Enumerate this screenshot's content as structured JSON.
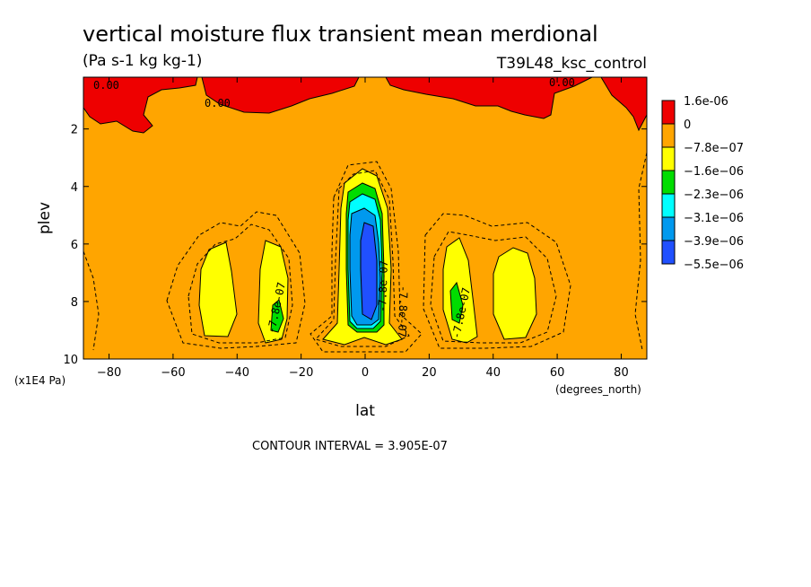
{
  "chart_data": {
    "type": "heatmap",
    "title": "vertical moisture flux transient mean merdional",
    "units_label": "(Pa s-1 kg kg-1)",
    "run_label": "T39L48_ksc_control",
    "xlabel": "lat",
    "x_units": "(degrees_north)",
    "ylabel": "plev",
    "y_units": "(x1E4 Pa)",
    "xlim": [
      -88,
      88
    ],
    "ylim": [
      0.2,
      10
    ],
    "y_inverted": true,
    "x_ticks": [
      "-80",
      "-60",
      "-40",
      "-20",
      "0",
      "20",
      "40",
      "60",
      "80"
    ],
    "y_ticks": [
      "2",
      "4",
      "6",
      "8",
      "10"
    ],
    "contour_interval_text": "CONTOUR INTERVAL = 3.905E-07",
    "contour_labels": [
      "0.00",
      "0.00",
      "0.00",
      "-7.8e-07",
      "-7.8e-07",
      "-7.8e-07",
      "-7.8e-07"
    ],
    "legend": {
      "entries": [
        {
          "label": "1.6e-06",
          "color": "#ee0000"
        },
        {
          "label": "0",
          "color": "#ffa500"
        },
        {
          "label": "−7.8e−07",
          "color": "#ffff00"
        },
        {
          "label": "−1.6e−06",
          "color": "#00dd00"
        },
        {
          "label": "−2.3e−06",
          "color": "#00ffff"
        },
        {
          "label": "−3.1e−06",
          "color": "#0099ee"
        },
        {
          "label": "−3.9e−06",
          "color": "#2050ff"
        },
        {
          "label": "−5.5e−06",
          "color": ""
        }
      ]
    },
    "features": [
      {
        "name": "tropical-minimum",
        "lat": 0,
        "plev_range": [
          3.4,
          9.2
        ],
        "min_value": -5.5e-06
      },
      {
        "name": "sh-subtropical-minimum",
        "lat": -28,
        "plev_range": [
          6.0,
          9.2
        ],
        "min_value": -1.6e-06
      },
      {
        "name": "nh-subtropical-minimum",
        "lat": 28,
        "plev_range": [
          6.0,
          9.2
        ],
        "min_value": -1.6e-06
      },
      {
        "name": "sh-midlatitude-minimum",
        "lat": -47,
        "plev_range": [
          6.3,
          9.3
        ],
        "min_value": -7.8e-07
      },
      {
        "name": "nh-midlatitude-minimum",
        "lat": 47,
        "plev_range": [
          6.3,
          9.3
        ],
        "min_value": -7.8e-07
      },
      {
        "name": "upper-positive-patches",
        "plev_range": [
          0.2,
          1.5
        ],
        "min_value": 0
      }
    ]
  }
}
